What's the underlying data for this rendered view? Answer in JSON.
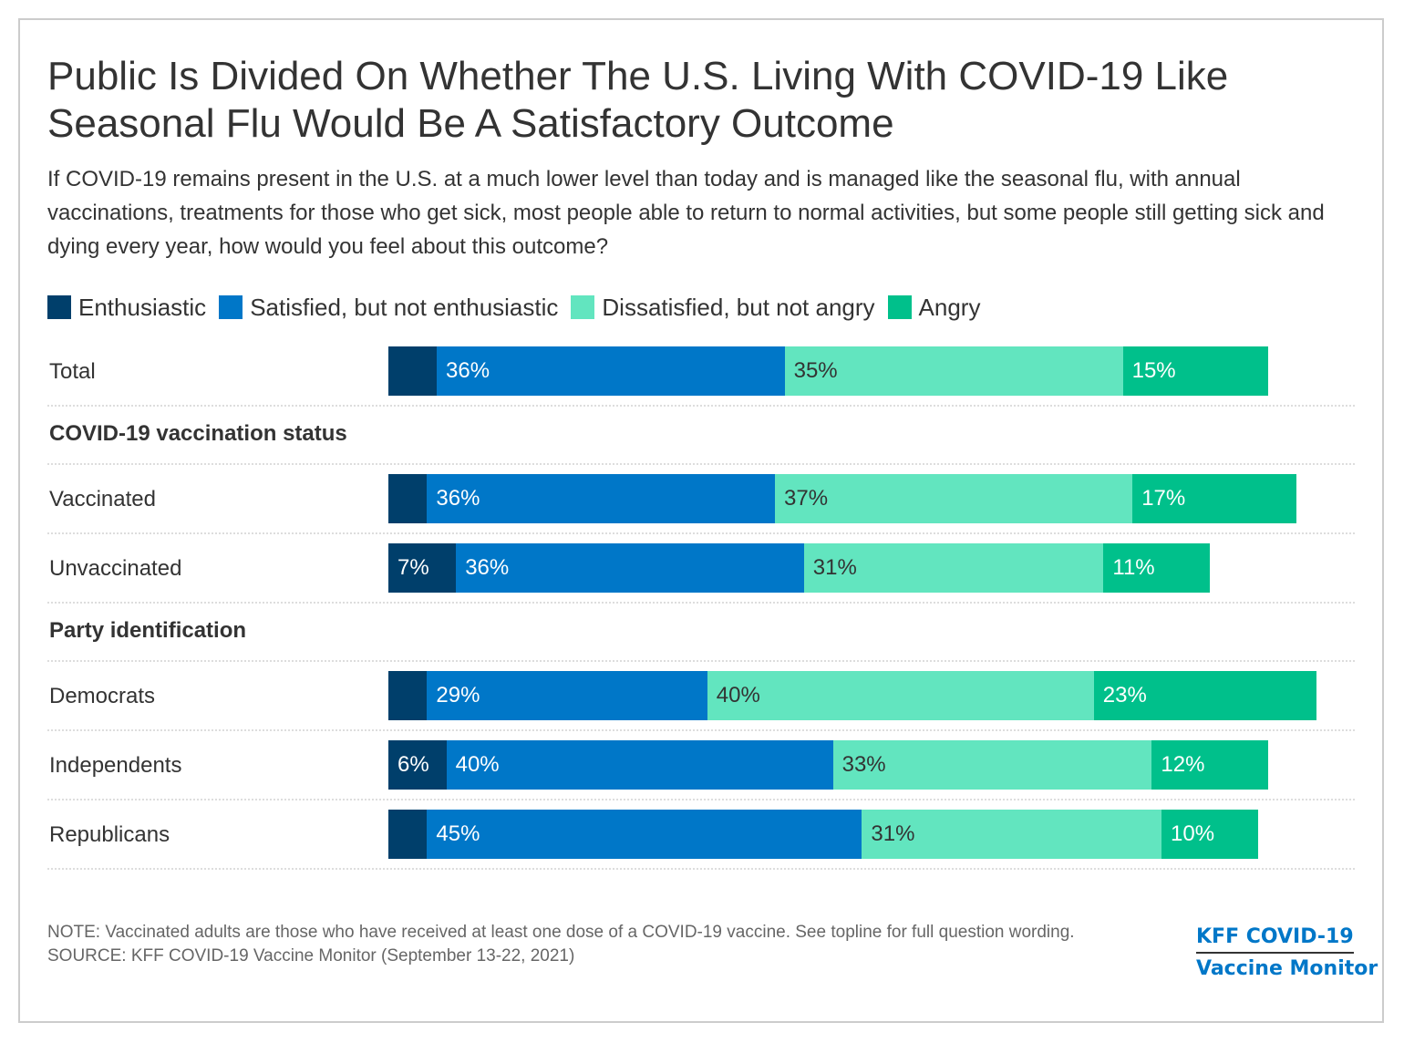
{
  "title": "Public Is Divided On Whether The U.S. Living With COVID-19 Like Seasonal Flu Would Be A Satisfactory Outcome",
  "subtitle": "If COVID-19 remains present in the U.S. at a much lower level than today and is managed like the seasonal flu, with annual vaccinations, treatments for those who get sick, most people able to return to normal activities, but some people still getting sick and dying every year, how would you feel about this outcome?",
  "note": "NOTE: Vaccinated adults are those who have received at least one dose of a COVID-19 vaccine. See topline for full question wording.",
  "source": "SOURCE: KFF COVID-19 Vaccine Monitor (September 13-22, 2021)",
  "logo": {
    "line1": "KFF COVID-19",
    "line2": "Vaccine Monitor"
  },
  "chart_data": {
    "type": "bar",
    "orientation": "horizontal-stacked",
    "title": "Public Is Divided On Whether The U.S. Living With COVID-19 Like Seasonal Flu Would Be A Satisfactory Outcome",
    "legend_position": "top-left",
    "series": [
      {
        "name": "Enthusiastic",
        "color": "#003f6b"
      },
      {
        "name": "Satisfied, but not enthusiastic",
        "color": "#0077c8"
      },
      {
        "name": "Dissatisfied, but not angry",
        "color": "#62e5bf"
      },
      {
        "name": "Angry",
        "color": "#00c08b"
      }
    ],
    "groups": [
      {
        "label": "",
        "rows": [
          {
            "category": "Total",
            "values": [
              5,
              36,
              35,
              15
            ],
            "labels": [
              "",
              "36%",
              "35%",
              "15%"
            ]
          }
        ]
      },
      {
        "label": "COVID-19 vaccination status",
        "rows": [
          {
            "category": "Vaccinated",
            "values": [
              4,
              36,
              37,
              17
            ],
            "labels": [
              "",
              "36%",
              "37%",
              "17%"
            ]
          },
          {
            "category": "Unvaccinated",
            "values": [
              7,
              36,
              31,
              11
            ],
            "labels": [
              "7%",
              "36%",
              "31%",
              "11%"
            ]
          }
        ]
      },
      {
        "label": "Party identification",
        "rows": [
          {
            "category": "Democrats",
            "values": [
              4,
              29,
              40,
              23
            ],
            "labels": [
              "",
              "29%",
              "40%",
              "23%"
            ]
          },
          {
            "category": "Independents",
            "values": [
              6,
              40,
              33,
              12
            ],
            "labels": [
              "6%",
              "40%",
              "33%",
              "12%"
            ]
          },
          {
            "category": "Republicans",
            "values": [
              4,
              45,
              31,
              10
            ],
            "labels": [
              "",
              "45%",
              "31%",
              "10%"
            ]
          }
        ]
      }
    ],
    "label_colors": [
      "#ffffff",
      "#ffffff",
      "#333333",
      "#ffffff"
    ]
  }
}
